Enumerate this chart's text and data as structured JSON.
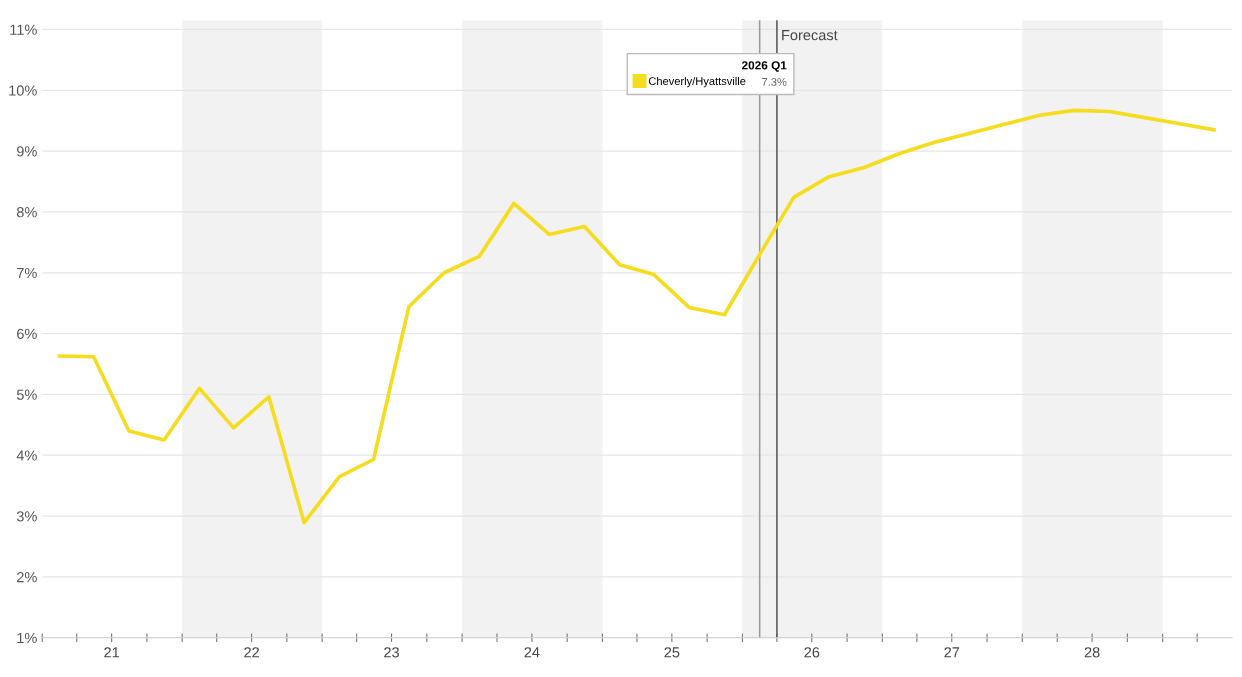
{
  "chart_data": {
    "type": "line",
    "x": [
      "2021-02-15",
      "2021-05-15",
      "2021-08-15",
      "2021-11-15",
      "2022-02-15",
      "2022-05-15",
      "2022-08-15",
      "2022-11-15",
      "2023-02-15",
      "2023-05-15",
      "2023-08-15",
      "2023-11-15",
      "2024-02-15",
      "2024-05-15",
      "2024-08-15",
      "2024-11-15",
      "2025-02-15",
      "2025-05-15",
      "2025-08-15",
      "2025-11-15",
      "2026-02-15",
      "2026-05-15",
      "2026-08-15",
      "2026-11-15",
      "2027-02-15",
      "2027-05-15",
      "2027-08-15",
      "2027-11-15",
      "2028-02-15",
      "2028-05-15",
      "2028-08-15",
      "2028-11-15",
      "2029-02-15",
      "2029-05-15"
    ],
    "series": [
      {
        "name": "Cheverly/Hyattsville",
        "color": "#f5dc1e",
        "values": [
          5.63,
          5.62,
          4.4,
          4.25,
          5.1,
          4.45,
          4.96,
          2.89,
          3.65,
          3.93,
          6.44,
          7.0,
          7.27,
          8.14,
          7.63,
          7.76,
          7.13,
          6.97,
          6.43,
          6.31,
          7.3,
          8.24,
          8.58,
          8.73,
          8.96,
          9.14,
          9.29,
          9.44,
          9.59,
          9.67,
          9.65,
          9.55,
          9.45,
          9.35
        ]
      }
    ],
    "legend_title": "2026 Q1",
    "legend": "top",
    "annotations": [
      "7.3%"
    ],
    "xlim": [
      "2021-01-01",
      "2029-07-01"
    ],
    "xticks": [
      {
        "value": "2021-01-01",
        "label": null
      },
      {
        "value": "2021-04-01",
        "label": null
      },
      {
        "value": "2021-07-01",
        "label": "21"
      },
      {
        "value": "2021-10-01",
        "label": null
      },
      {
        "value": "2022-01-01",
        "label": null
      },
      {
        "value": "2022-04-01",
        "label": null
      },
      {
        "value": "2022-07-01",
        "label": "22"
      },
      {
        "value": "2022-10-01",
        "label": null
      },
      {
        "value": "2023-01-01",
        "label": null
      },
      {
        "value": "2023-04-01",
        "label": null
      },
      {
        "value": "2023-07-01",
        "label": "23"
      },
      {
        "value": "2023-10-01",
        "label": null
      },
      {
        "value": "2024-01-01",
        "label": null
      },
      {
        "value": "2024-04-01",
        "label": null
      },
      {
        "value": "2024-07-01",
        "label": "24"
      },
      {
        "value": "2024-10-01",
        "label": null
      },
      {
        "value": "2025-01-01",
        "label": null
      },
      {
        "value": "2025-04-01",
        "label": null
      },
      {
        "value": "2025-07-01",
        "label": "25"
      },
      {
        "value": "2025-10-01",
        "label": null
      },
      {
        "value": "2026-01-01",
        "label": null
      },
      {
        "value": "2026-04-01",
        "label": null
      },
      {
        "value": "2026-07-01",
        "label": "26"
      },
      {
        "value": "2026-10-01",
        "label": null
      },
      {
        "value": "2027-01-01",
        "label": null
      },
      {
        "value": "2027-04-01",
        "label": null
      },
      {
        "value": "2027-07-01",
        "label": "27"
      },
      {
        "value": "2027-10-01",
        "label": null
      },
      {
        "value": "2028-01-01",
        "label": null
      },
      {
        "value": "2028-04-01",
        "label": null
      },
      {
        "value": "2028-07-01",
        "label": "28"
      },
      {
        "value": "2028-10-01",
        "label": null
      },
      {
        "value": "2029-01-01",
        "label": null
      },
      {
        "value": "2029-04-01",
        "label": null
      }
    ],
    "ylim": [
      1,
      11.15
    ],
    "yticks": [
      {
        "value": 1,
        "label": "1%"
      },
      {
        "value": 2,
        "label": "2%"
      },
      {
        "value": 3,
        "label": "3%"
      },
      {
        "value": 4,
        "label": "4%"
      },
      {
        "value": 5,
        "label": "5%"
      },
      {
        "value": 6,
        "label": "6%"
      },
      {
        "value": 7,
        "label": "7%"
      },
      {
        "value": 8,
        "label": "8%"
      },
      {
        "value": 9,
        "label": "9%"
      },
      {
        "value": 10,
        "label": "10%"
      },
      {
        "value": 11,
        "label": "11%"
      }
    ],
    "grid": "y",
    "marker": "none",
    "line_style": "solid",
    "ref_lines": [
      {
        "axis": "x",
        "value": "2026-02-15",
        "color": "#9a9a9a"
      },
      {
        "axis": "x",
        "value": "2026-04-01",
        "label": "Forecast",
        "color": "#555555"
      }
    ],
    "bands": [
      {
        "axis": "x",
        "from": "2022-01-01",
        "to": "2023-01-01",
        "color": "#f2f2f2"
      },
      {
        "axis": "x",
        "from": "2024-01-01",
        "to": "2025-01-01",
        "color": "#f2f2f2"
      },
      {
        "axis": "x",
        "from": "2026-01-01",
        "to": "2027-01-01",
        "color": "#f2f2f2"
      },
      {
        "axis": "x",
        "from": "2028-01-01",
        "to": "2029-01-01",
        "color": "#f2f2f2"
      }
    ]
  }
}
